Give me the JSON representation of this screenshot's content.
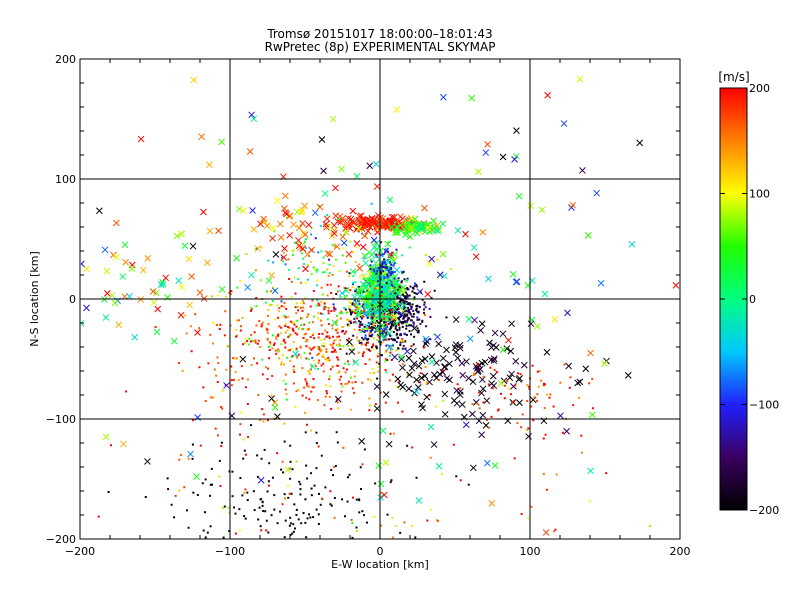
{
  "chart_data": {
    "type": "scatter",
    "title": "Tromsø 20151017 18:00:00–18:01:43",
    "subtitle": "RwPretec (8p) EXPERIMENTAL SKYMAP",
    "xlabel": "E-W location [km]",
    "ylabel": "N-S location [km]",
    "xlim": [
      -200,
      200
    ],
    "ylim": [
      -200,
      200
    ],
    "xticks": [
      -200,
      -100,
      0,
      100,
      200
    ],
    "yticks": [
      -200,
      -100,
      0,
      100,
      200
    ],
    "xtick_labels": [
      "−200",
      "−100",
      "0",
      "100",
      "200"
    ],
    "ytick_labels": [
      "−200",
      "−100",
      "0",
      "100",
      "200"
    ],
    "grid": true,
    "colorbar": {
      "label": "[m/s]",
      "range": [
        -200,
        200
      ],
      "ticks": [
        200,
        100,
        0,
        -100,
        -200
      ],
      "tick_labels": [
        "200",
        "100",
        "0",
        "−100",
        "−200"
      ],
      "colormap": [
        "#000000",
        "#3a0060",
        "#2020ff",
        "#00c8ff",
        "#00ff80",
        "#20ff00",
        "#ffff00",
        "#ff8000",
        "#ff0000"
      ]
    },
    "marker_legend_note": "",
    "clusters": [
      {
        "cx": 5,
        "cy": -10,
        "sx": 12,
        "sy": 14,
        "n": 700,
        "vmean": -180,
        "vsd": 40,
        "marker": "dot"
      },
      {
        "cx": 0,
        "cy": 5,
        "sx": 6,
        "sy": 14,
        "n": 260,
        "vmean": 10,
        "vsd": 40,
        "marker": "x"
      },
      {
        "cx": 3,
        "cy": 25,
        "sx": 4,
        "sy": 8,
        "n": 90,
        "vmean": -120,
        "vsd": 30,
        "marker": "dot"
      },
      {
        "cx": 0,
        "cy": 63,
        "sx": 14,
        "sy": 3,
        "n": 140,
        "vmean": 190,
        "vsd": 15,
        "marker": "x"
      },
      {
        "cx": 25,
        "cy": 60,
        "sx": 8,
        "sy": 3,
        "n": 70,
        "vmean": 50,
        "vsd": 30,
        "marker": "x"
      },
      {
        "cx": -40,
        "cy": -28,
        "sx": 28,
        "sy": 20,
        "n": 380,
        "vmean": 150,
        "vsd": 80,
        "marker": "dot"
      },
      {
        "cx": -55,
        "cy": -55,
        "sx": 40,
        "sy": 25,
        "n": 220,
        "vmean": 170,
        "vsd": 40,
        "marker": "dot"
      },
      {
        "cx": -30,
        "cy": 25,
        "sx": 30,
        "sy": 20,
        "n": 140,
        "vmean": 40,
        "vsd": 80,
        "marker": "dot"
      },
      {
        "cx": -60,
        "cy": -170,
        "sx": 40,
        "sy": 25,
        "n": 180,
        "vmean": -195,
        "vsd": 8,
        "marker": "dot"
      },
      {
        "cx": 55,
        "cy": -65,
        "sx": 30,
        "sy": 20,
        "n": 120,
        "vmean": -190,
        "vsd": 20,
        "marker": "x"
      },
      {
        "cx": 95,
        "cy": -80,
        "sx": 25,
        "sy": 15,
        "n": 70,
        "vmean": 180,
        "vsd": 30,
        "marker": "dot"
      },
      {
        "cx": -150,
        "cy": 10,
        "sx": 25,
        "sy": 20,
        "n": 50,
        "vmean": 60,
        "vsd": 80,
        "marker": "x"
      },
      {
        "cx": -50,
        "cy": 58,
        "sx": 25,
        "sy": 15,
        "n": 60,
        "vmean": 170,
        "vsd": 50,
        "marker": "x"
      },
      {
        "cx": 0,
        "cy": -150,
        "sx": 80,
        "sy": 45,
        "n": 110,
        "vmean": 170,
        "vsd": 60,
        "marker": "dot"
      },
      {
        "cx": 0,
        "cy": 0,
        "sx": 110,
        "sy": 110,
        "n": 180,
        "vmean": 0,
        "vsd": 150,
        "marker": "x"
      }
    ]
  }
}
